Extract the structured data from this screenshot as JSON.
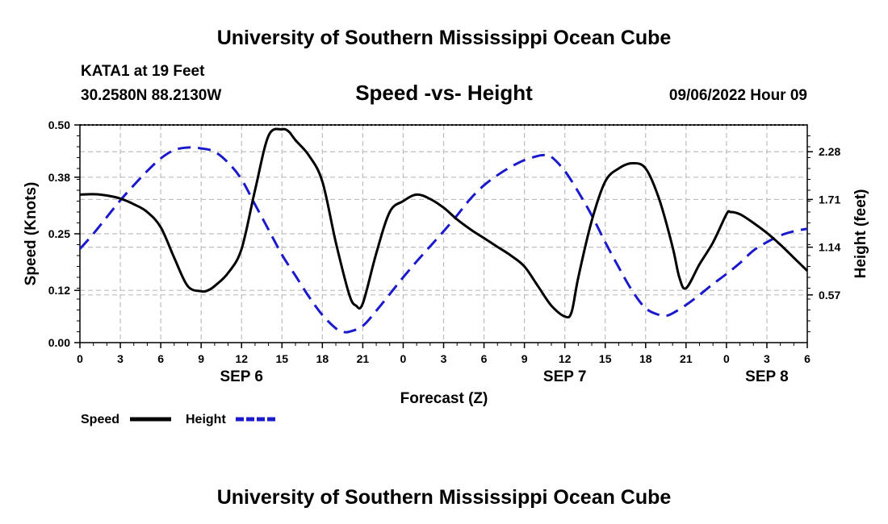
{
  "header": {
    "title": "University of Southern Mississippi Ocean Cube",
    "station": "KATA1 at 19 Feet",
    "coords": "30.2580N  88.2130W",
    "chart_title": "Speed -vs- Height",
    "datetime": "09/06/2022 Hour 09"
  },
  "footer": {
    "title": "University of Southern Mississippi Ocean Cube"
  },
  "legend": {
    "speed_label": "Speed",
    "height_label": "Height"
  },
  "colors": {
    "speed": "#000000",
    "height": "#1a1acc",
    "grid": "#bdbdbd"
  },
  "chart_data": {
    "type": "line",
    "title": "Speed -vs- Height",
    "xlabel": "Forecast (Z)",
    "ylabel": "Speed (Knots)",
    "y2label": "Height (feet)",
    "ylim": [
      0,
      0.5
    ],
    "y2lim": [
      0,
      2.6
    ],
    "xlim": [
      0,
      54
    ],
    "x_ticks": [
      0,
      3,
      6,
      9,
      12,
      15,
      18,
      21,
      24,
      27,
      30,
      33,
      36,
      39,
      42,
      45,
      48,
      51,
      54
    ],
    "x_tick_labels": [
      "0",
      "3",
      "6",
      "9",
      "12",
      "15",
      "18",
      "21",
      "0",
      "3",
      "6",
      "9",
      "12",
      "15",
      "18",
      "21",
      "0",
      "3",
      "6"
    ],
    "y_ticks": [
      0.0,
      0.12,
      0.25,
      0.38,
      0.5
    ],
    "y_tick_labels": [
      "0.00",
      "0.12",
      "0.25",
      "0.38",
      "0.50"
    ],
    "y2_ticks": [
      0.57,
      1.14,
      1.71,
      2.28
    ],
    "y2_tick_labels": [
      "0.57",
      "1.14",
      "1.71",
      "2.28"
    ],
    "date_labels": [
      {
        "x": 12,
        "label": "SEP 6"
      },
      {
        "x": 36,
        "label": "SEP 7"
      },
      {
        "x": 51,
        "label": "SEP 8"
      }
    ],
    "series": [
      {
        "name": "Speed",
        "axis": "left",
        "style": "solid",
        "x": [
          0,
          1,
          2,
          3,
          4,
          5,
          6,
          7,
          8,
          9,
          9.5,
          10,
          11,
          12,
          13,
          14,
          15,
          15.5,
          16,
          17,
          18,
          19,
          20,
          20.5,
          21,
          22,
          23,
          24,
          25,
          26,
          27,
          28,
          29,
          30,
          31,
          32,
          33,
          34,
          35,
          36,
          36.5,
          37,
          38,
          39,
          40,
          41,
          42,
          43,
          44,
          44.5,
          45,
          46,
          47,
          48,
          48.3,
          49,
          50,
          51,
          52,
          53,
          54
        ],
        "values": [
          0.34,
          0.341,
          0.338,
          0.331,
          0.318,
          0.3,
          0.265,
          0.195,
          0.13,
          0.118,
          0.12,
          0.13,
          0.16,
          0.215,
          0.35,
          0.475,
          0.49,
          0.485,
          0.465,
          0.43,
          0.37,
          0.23,
          0.11,
          0.085,
          0.09,
          0.205,
          0.3,
          0.325,
          0.34,
          0.33,
          0.31,
          0.283,
          0.26,
          0.24,
          0.22,
          0.2,
          0.175,
          0.13,
          0.085,
          0.06,
          0.07,
          0.15,
          0.28,
          0.37,
          0.4,
          0.412,
          0.4,
          0.33,
          0.22,
          0.15,
          0.125,
          0.18,
          0.23,
          0.295,
          0.3,
          0.295,
          0.275,
          0.252,
          0.225,
          0.195,
          0.165
        ]
      },
      {
        "name": "Height",
        "axis": "right",
        "style": "dashed",
        "x": [
          0,
          1,
          2,
          3,
          4,
          5,
          6,
          7,
          8,
          9,
          10,
          11,
          12,
          13,
          14,
          15,
          16,
          17,
          18,
          19,
          19.5,
          20,
          21,
          22,
          23,
          24,
          25,
          26,
          27,
          28,
          29,
          30,
          31,
          32,
          33,
          34,
          34.5,
          35,
          36,
          37,
          38,
          39,
          40,
          41,
          42,
          43,
          43.5,
          44,
          45,
          46,
          47,
          48,
          49,
          50,
          51,
          52,
          53,
          54
        ],
        "values": [
          1.12,
          1.3,
          1.5,
          1.7,
          1.88,
          2.05,
          2.2,
          2.3,
          2.33,
          2.32,
          2.28,
          2.15,
          1.95,
          1.65,
          1.35,
          1.05,
          0.8,
          0.55,
          0.33,
          0.17,
          0.13,
          0.13,
          0.2,
          0.38,
          0.58,
          0.78,
          0.97,
          1.15,
          1.33,
          1.52,
          1.72,
          1.88,
          2.0,
          2.1,
          2.18,
          2.23,
          2.24,
          2.22,
          2.05,
          1.8,
          1.52,
          1.2,
          0.9,
          0.62,
          0.41,
          0.33,
          0.32,
          0.35,
          0.45,
          0.57,
          0.7,
          0.82,
          0.95,
          1.1,
          1.2,
          1.28,
          1.33,
          1.36
        ]
      }
    ]
  }
}
